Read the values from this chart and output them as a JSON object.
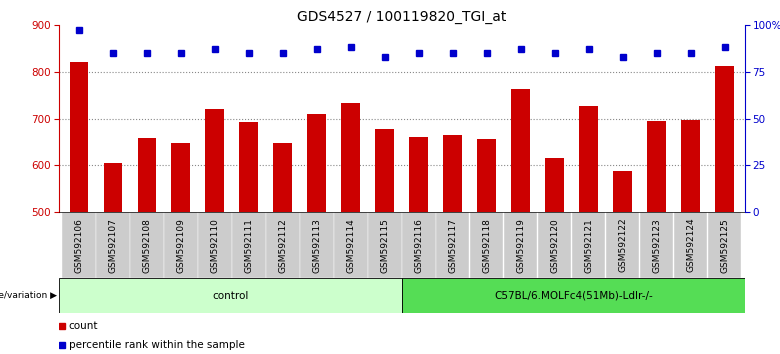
{
  "title": "GDS4527 / 100119820_TGI_at",
  "samples": [
    "GSM592106",
    "GSM592107",
    "GSM592108",
    "GSM592109",
    "GSM592110",
    "GSM592111",
    "GSM592112",
    "GSM592113",
    "GSM592114",
    "GSM592115",
    "GSM592116",
    "GSM592117",
    "GSM592118",
    "GSM592119",
    "GSM592120",
    "GSM592121",
    "GSM592122",
    "GSM592123",
    "GSM592124",
    "GSM592125"
  ],
  "counts": [
    820,
    605,
    658,
    648,
    720,
    693,
    647,
    710,
    733,
    678,
    660,
    666,
    657,
    763,
    617,
    726,
    588,
    694,
    697,
    812
  ],
  "percentile_ranks": [
    97,
    85,
    85,
    85,
    87,
    85,
    85,
    87,
    88,
    83,
    85,
    85,
    85,
    87,
    85,
    87,
    83,
    85,
    85,
    88
  ],
  "control_count": 10,
  "ylim_left": [
    500,
    900
  ],
  "ylim_right": [
    0,
    100
  ],
  "yticks_left": [
    500,
    600,
    700,
    800,
    900
  ],
  "yticks_right": [
    0,
    25,
    50,
    75,
    100
  ],
  "ytick_labels_right": [
    "0",
    "25",
    "50",
    "75",
    "100%"
  ],
  "bar_color": "#cc0000",
  "dot_color": "#0000cc",
  "grid_color": "#888888",
  "control_bg": "#ccffcc",
  "c57bl_bg": "#55dd55",
  "tick_label_bg": "#cccccc",
  "control_label": "control",
  "group2_label": "C57BL/6.MOLFc4(51Mb)-Ldlr-/-",
  "genotype_label": "genotype/variation",
  "legend_count": "count",
  "legend_pct": "percentile rank within the sample",
  "title_fontsize": 10,
  "tick_fontsize": 7.5,
  "label_fontsize": 6.5,
  "geno_fontsize": 7.5,
  "legend_fontsize": 7.5
}
